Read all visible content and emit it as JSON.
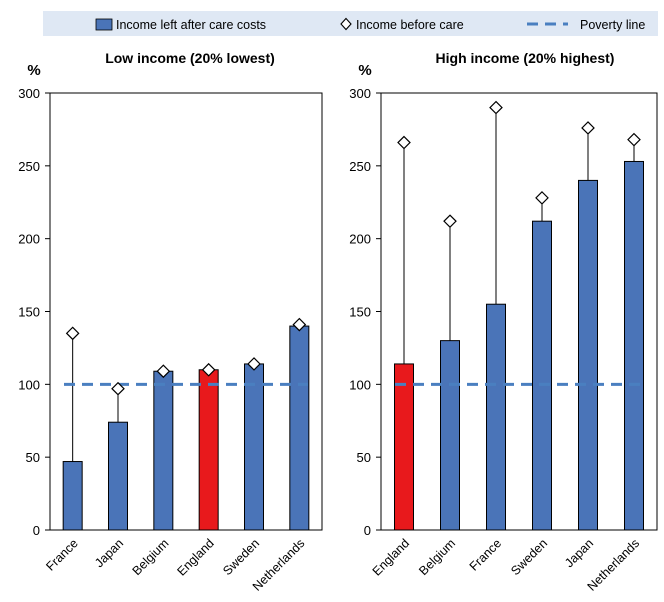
{
  "legend": {
    "bar_label": "Income left after care costs",
    "marker_label": "Income before care",
    "line_label": "Poverty line"
  },
  "colors": {
    "bar": "#4a74b8",
    "highlight": "#e8191c",
    "poverty_line": "#4a7fc0",
    "legend_bg": "#dfe8f4",
    "plot_bg": "#ffffff"
  },
  "chart_data": [
    {
      "type": "bar",
      "title": "Low income (20% lowest)",
      "ylabel": "%",
      "ylim": [
        0,
        300
      ],
      "yticks": [
        0,
        50,
        100,
        150,
        200,
        250,
        300
      ],
      "categories": [
        "France",
        "Japan",
        "Belgium",
        "England",
        "Sweden",
        "Netherlands"
      ],
      "series": [
        {
          "name": "Income left after care costs",
          "values": [
            47,
            74,
            109,
            110,
            114,
            140
          ]
        },
        {
          "name": "Income before care",
          "values": [
            135,
            97,
            109,
            110,
            114,
            141
          ]
        }
      ],
      "poverty_line": 100,
      "highlight": "England"
    },
    {
      "type": "bar",
      "title": "High income (20% highest)",
      "ylabel": "%",
      "ylim": [
        0,
        300
      ],
      "yticks": [
        0,
        50,
        100,
        150,
        200,
        250,
        300
      ],
      "categories": [
        "England",
        "Belgium",
        "France",
        "Sweden",
        "Japan",
        "Netherlands"
      ],
      "series": [
        {
          "name": "Income left after care costs",
          "values": [
            114,
            130,
            155,
            212,
            240,
            253
          ]
        },
        {
          "name": "Income before care",
          "values": [
            266,
            212,
            290,
            228,
            276,
            268
          ]
        }
      ],
      "poverty_line": 100,
      "highlight": "England"
    }
  ]
}
